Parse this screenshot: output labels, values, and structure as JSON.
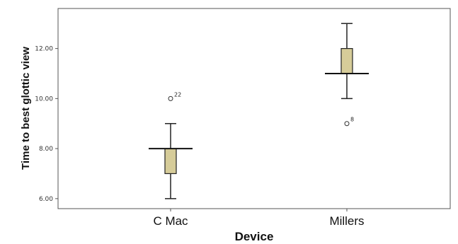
{
  "chart_data": {
    "type": "boxplot",
    "xlabel": "Device",
    "ylabel": "Time to best glottic view",
    "ylim": [
      5.6,
      13.6
    ],
    "yticks": [
      6,
      8,
      10,
      12
    ],
    "ytick_labels": [
      "6.00",
      "8.00",
      "10.00",
      "12.00"
    ],
    "grid": false,
    "box_color": "#d6cc99",
    "categories": [
      "C Mac",
      "Millers"
    ],
    "boxes": [
      {
        "category": "C Mac",
        "whisker_low": 6,
        "q1": 7,
        "median": 8,
        "q3": 8,
        "whisker_high": 9,
        "outliers": [
          {
            "value": 10,
            "label": "22"
          }
        ]
      },
      {
        "category": "Millers",
        "whisker_low": 10,
        "q1": 11,
        "median": 11,
        "q3": 12,
        "whisker_high": 13,
        "outliers": [
          {
            "value": 9,
            "label": "8"
          }
        ]
      }
    ]
  }
}
